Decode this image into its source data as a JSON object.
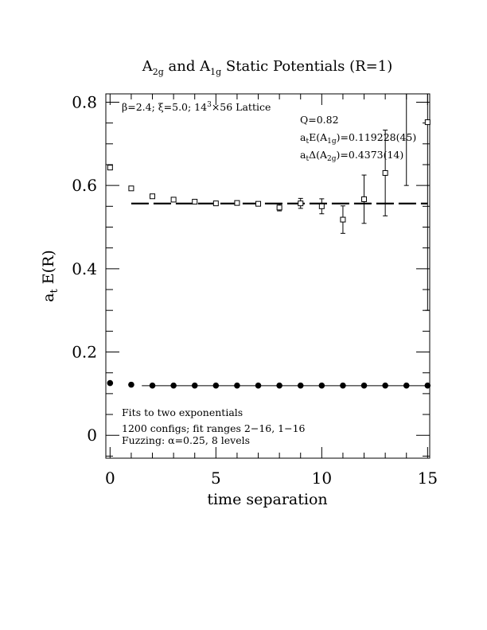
{
  "chart_data": {
    "type": "scatter",
    "title": {
      "parts": [
        {
          "text": "A",
          "sub": "2g"
        },
        {
          "text": " and A",
          "sub": "1g"
        },
        {
          "text": " Static Potentials (R=1)"
        }
      ]
    },
    "xlabel": "time separation",
    "ylabel": {
      "parts": [
        {
          "text": "a",
          "sub": "t"
        },
        {
          "text": " E(R)"
        }
      ]
    },
    "xlim": [
      -0.2,
      15.1
    ],
    "ylim": [
      -0.055,
      0.82
    ],
    "x_ticks": [
      0,
      5,
      10,
      15
    ],
    "x_tick_labels": [
      "0",
      "5",
      "10",
      "15"
    ],
    "y_ticks": [
      0,
      0.2,
      0.4,
      0.6,
      0.8
    ],
    "y_tick_labels": [
      "0",
      "0.2",
      "0.4",
      "0.6",
      "0.8"
    ],
    "grid": false,
    "series": [
      {
        "marker": "open-square",
        "x": [
          0,
          1,
          2,
          3,
          4,
          5,
          6,
          7,
          8,
          9,
          10,
          11,
          12,
          13,
          15
        ],
        "y": [
          0.643,
          0.593,
          0.574,
          0.566,
          0.561,
          0.557,
          0.558,
          0.556,
          0.547,
          0.557,
          0.55,
          0.518,
          0.567,
          0.63,
          0.752
        ],
        "err": [
          0.002,
          0.002,
          0.002,
          0.002,
          0.002,
          0.002,
          0.003,
          0.004,
          0.008,
          0.012,
          0.018,
          0.033,
          0.058,
          0.103,
          0.452
        ]
      },
      {
        "marker": "errorbar-only",
        "x": [
          14
        ],
        "y": [
          0.76
        ],
        "err": [
          0.16
        ]
      },
      {
        "marker": "filled-circle",
        "x": [
          0,
          1,
          2,
          3,
          4,
          5,
          6,
          7,
          8,
          9,
          10,
          11,
          12,
          13,
          14,
          15
        ],
        "y": [
          0.1255,
          0.1215,
          0.1195,
          0.1195,
          0.1195,
          0.1195,
          0.1195,
          0.1195,
          0.1195,
          0.1195,
          0.1195,
          0.1195,
          0.1195,
          0.1195,
          0.1195,
          0.1195
        ],
        "err": [
          0.001,
          0.001,
          0.001,
          0.001,
          0.001,
          0.001,
          0.001,
          0.001,
          0.001,
          0.001,
          0.001,
          0.001,
          0.001,
          0.001,
          0.001,
          0.001
        ]
      }
    ],
    "fit_lines": [
      {
        "style": "dashed",
        "x": [
          1,
          15
        ],
        "y": 0.5566
      },
      {
        "style": "solid",
        "x": [
          1.5,
          15
        ],
        "y": 0.1192
      }
    ],
    "annotations": {
      "lattice": {
        "parts": [
          {
            "text": "β=2.4; ξ=5.0; 14"
          },
          {
            "text": "3",
            "sup": true
          },
          {
            "text": "×56 Lattice"
          }
        ]
      },
      "q": {
        "parts": [
          {
            "text": "Q=0.82"
          }
        ]
      },
      "a1g": {
        "parts": [
          {
            "text": "a"
          },
          {
            "text": "t",
            "sub": true
          },
          {
            "text": "E(A"
          },
          {
            "text": "1g",
            "sub": true
          },
          {
            "text": ")=0.119228(45)"
          }
        ]
      },
      "a2g": {
        "parts": [
          {
            "text": "a"
          },
          {
            "text": "t",
            "sub": true
          },
          {
            "text": "Δ(A"
          },
          {
            "text": "2g",
            "sub": true
          },
          {
            "text": ")=0.4373(14)"
          }
        ]
      },
      "fits": "Fits to two exponentials",
      "configs": "1200 configs; fit ranges 2−16, 1−16",
      "fuzzing": "Fuzzing: α=0.25, 8 levels"
    }
  }
}
